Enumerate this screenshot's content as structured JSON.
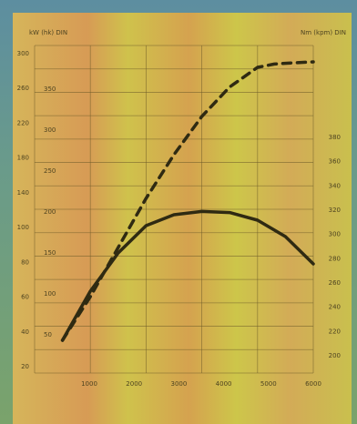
{
  "chart_data": {
    "type": "line",
    "title": "",
    "left_label": "kW (hk)  DIN",
    "right_label": "Nm (kpm)  DIN",
    "left_ticks": [
      "300",
      "260",
      "220",
      "180",
      "140",
      "100",
      "80",
      "60",
      "40",
      "20"
    ],
    "right_ticks": [
      "380",
      "360",
      "340",
      "320",
      "300",
      "280",
      "260",
      "240",
      "220",
      "200"
    ],
    "bottom_ticks": [
      "1000",
      "2000",
      "3000",
      "4000",
      "5000",
      "6000"
    ],
    "hp_labels": [
      "350",
      "300",
      "250",
      "200",
      "150",
      "100",
      "50"
    ],
    "ylim": [
      0,
      300
    ],
    "xlim": [
      1000,
      6000
    ],
    "series": [
      {
        "name": "",
        "style": "dashed",
        "color": "#2f2a12",
        "x": [
          1500,
          2000,
          2500,
          3000,
          3500,
          4000,
          4500,
          5000,
          5300,
          5600,
          6000
        ],
        "values": [
          30,
          70,
          115,
          160,
          200,
          235,
          262,
          280,
          283,
          284,
          285
        ]
      },
      {
        "name": "",
        "style": "solid",
        "color": "#2f2a12",
        "x": [
          1500,
          2000,
          2500,
          3000,
          3500,
          4000,
          4500,
          5000,
          5500,
          6000
        ],
        "values": [
          30,
          75,
          110,
          135,
          145,
          148,
          147,
          140,
          125,
          100
        ]
      }
    ]
  }
}
